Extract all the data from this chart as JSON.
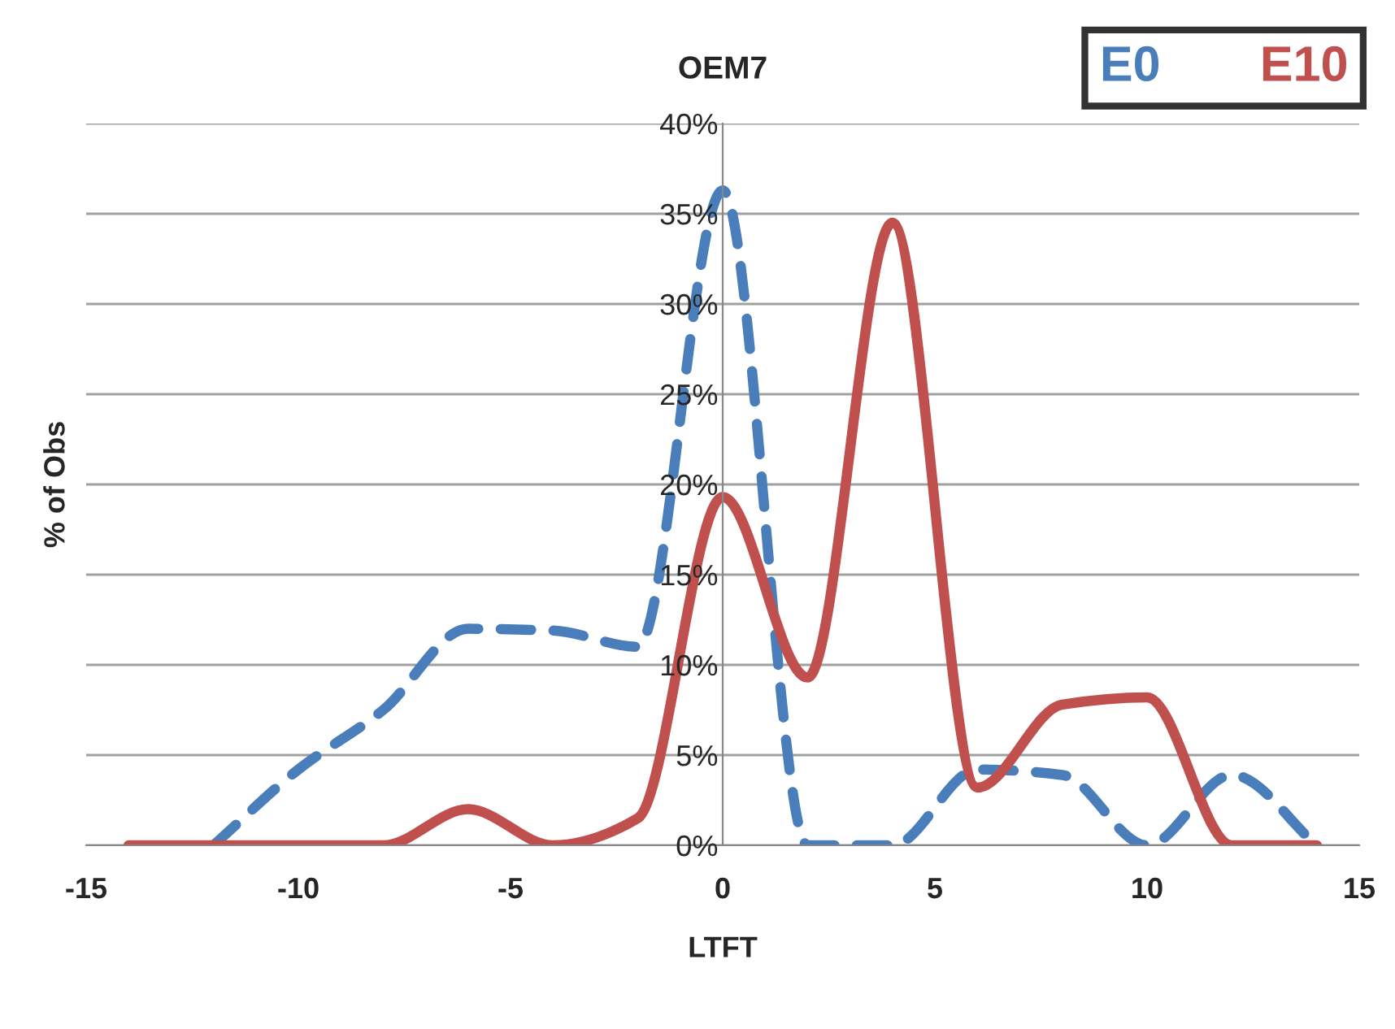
{
  "chart_data": {
    "type": "line",
    "title": "OEM7",
    "xlabel": "LTFT",
    "ylabel": "% of Obs",
    "x": [
      -14,
      -12,
      -10,
      -8,
      -6,
      -4,
      -2,
      0,
      2,
      4,
      6,
      8,
      10,
      12,
      14
    ],
    "series": [
      {
        "name": "E0",
        "color": "#4a7ebb",
        "line_style": "dashed",
        "values": [
          null,
          0,
          4.2,
          7.5,
          12,
          11.9,
          11,
          36.3,
          0,
          0,
          4.2,
          3.9,
          0,
          3.9,
          0
        ]
      },
      {
        "name": "E10",
        "color": "#c0504d",
        "line_style": "solid",
        "values": [
          0,
          0,
          0,
          0,
          2,
          0,
          1.5,
          19.3,
          9.3,
          34.5,
          3.2,
          7.8,
          8.2,
          0,
          0
        ]
      }
    ],
    "xlim": [
      -15,
      15
    ],
    "xticks": [
      -15,
      -10,
      -5,
      0,
      5,
      10,
      15
    ],
    "ylim": [
      0,
      40
    ],
    "yticks": [
      {
        "value": 0,
        "label": "0%"
      },
      {
        "value": 5,
        "label": "5%"
      },
      {
        "value": 10,
        "label": "10%"
      },
      {
        "value": 15,
        "label": "15%"
      },
      {
        "value": 20,
        "label": "20%"
      },
      {
        "value": 25,
        "label": "25%"
      },
      {
        "value": 30,
        "label": "30%"
      },
      {
        "value": 35,
        "label": "35%"
      },
      {
        "value": 40,
        "label": "40%"
      }
    ],
    "grid": "y",
    "legend": "top right",
    "marker": "none"
  }
}
